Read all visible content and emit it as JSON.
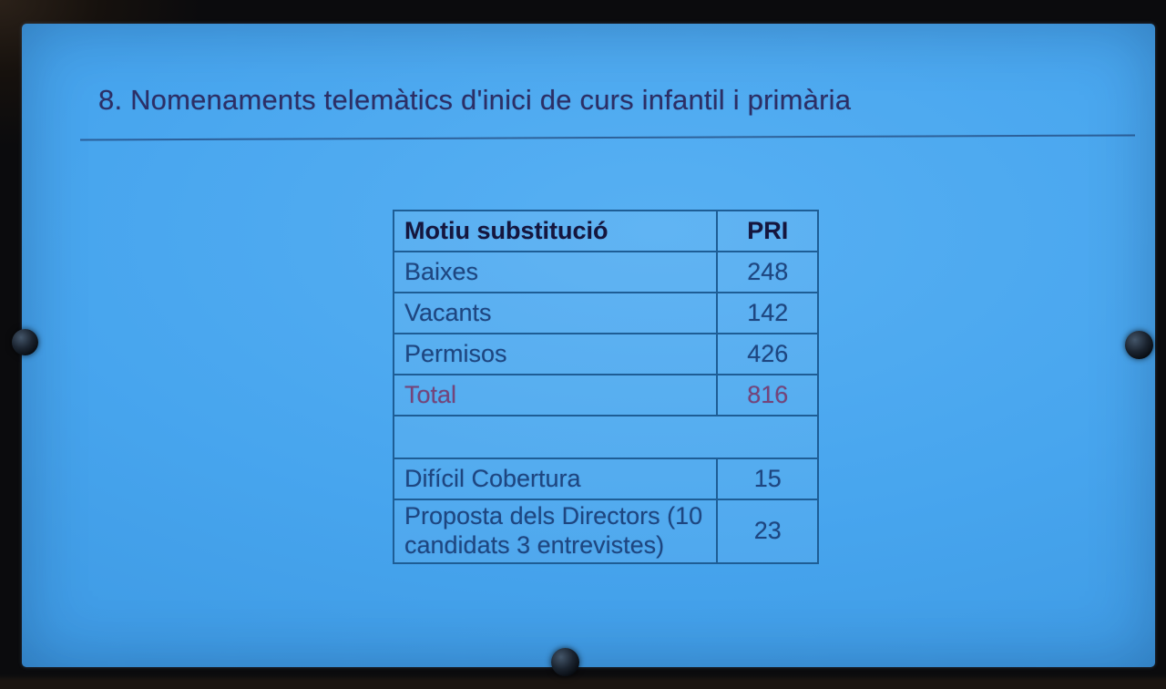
{
  "slide": {
    "title": "8. Nomenaments telemàtics d'inici de curs infantil i primària",
    "table": {
      "headers": [
        "Motiu substitució",
        "PRI"
      ],
      "rows": [
        {
          "label": "Baixes",
          "value": "248",
          "style": "normal"
        },
        {
          "label": "Vacants",
          "value": "142",
          "style": "normal"
        },
        {
          "label": "Permisos",
          "value": "426",
          "style": "normal"
        },
        {
          "label": "Total",
          "value": "816",
          "style": "total"
        },
        {
          "label": "",
          "value": "",
          "style": "spacer"
        },
        {
          "label": "Difícil Cobertura",
          "value": "15",
          "style": "normal"
        },
        {
          "label": "Proposta dels Directors (10 candidats 3 entrevistes)",
          "value": "23",
          "style": "normal"
        }
      ]
    }
  },
  "chart_data": {
    "type": "table",
    "title": "8. Nomenaments telemàtics d'inici de curs infantil i primària",
    "columns": [
      "Motiu substitució",
      "PRI"
    ],
    "rows": [
      [
        "Baixes",
        248
      ],
      [
        "Vacants",
        142
      ],
      [
        "Permisos",
        426
      ],
      [
        "Total",
        816
      ],
      [
        "",
        null
      ],
      [
        "Difícil Cobertura",
        15
      ],
      [
        "Proposta dels Directors (10 candidats 3 entrevistes)",
        23
      ]
    ]
  },
  "colors": {
    "screen_blue": "#47a5ee",
    "screen_blue_light": "#57b0f3",
    "screen_blue_dark": "#3389d2",
    "table_border": "#1e5d95",
    "text_navy": "#1e4680",
    "title_navy": "#2c2f66",
    "header_text": "#15163e",
    "total_purple": "#76447a",
    "bezel_black": "#0b0b0d"
  }
}
